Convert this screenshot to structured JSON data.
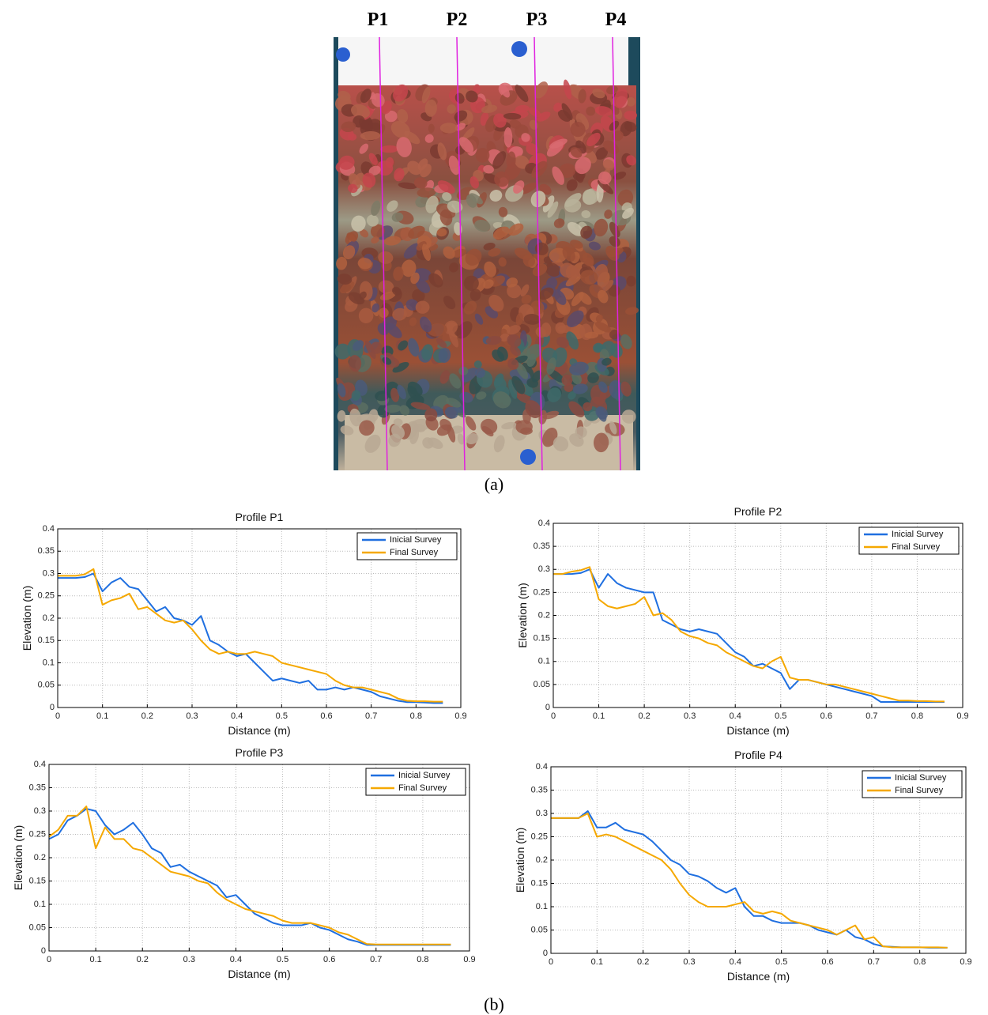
{
  "photo": {
    "profile_labels": [
      "P1",
      "P2",
      "P3",
      "P4"
    ]
  },
  "panel_labels": [
    "(a)",
    "(b)"
  ],
  "chart_data": [
    {
      "type": "line",
      "title": "Profile P1",
      "xlabel": "Distance (m)",
      "ylabel": "Elevation (m)",
      "x": [
        0,
        0.02,
        0.04,
        0.06,
        0.08,
        0.1,
        0.12,
        0.14,
        0.16,
        0.18,
        0.2,
        0.22,
        0.24,
        0.26,
        0.28,
        0.3,
        0.32,
        0.34,
        0.36,
        0.38,
        0.4,
        0.42,
        0.44,
        0.46,
        0.48,
        0.5,
        0.52,
        0.54,
        0.56,
        0.58,
        0.6,
        0.62,
        0.64,
        0.66,
        0.68,
        0.7,
        0.72,
        0.74,
        0.76,
        0.78,
        0.8,
        0.82,
        0.84,
        0.86
      ],
      "series": [
        {
          "name": "Inicial Survey",
          "color": "#1f6fe0",
          "values": [
            0.29,
            0.29,
            0.29,
            0.292,
            0.3,
            0.26,
            0.28,
            0.29,
            0.27,
            0.265,
            0.24,
            0.215,
            0.225,
            0.2,
            0.195,
            0.185,
            0.205,
            0.15,
            0.14,
            0.125,
            0.115,
            0.12,
            0.1,
            0.08,
            0.06,
            0.065,
            0.06,
            0.055,
            0.06,
            0.04,
            0.04,
            0.045,
            0.04,
            0.045,
            0.04,
            0.035,
            0.025,
            0.02,
            0.015,
            0.012,
            0.012,
            0.011,
            0.01,
            0.01
          ]
        },
        {
          "name": "Final Survey",
          "color": "#f5a800",
          "values": [
            0.295,
            0.295,
            0.295,
            0.298,
            0.31,
            0.23,
            0.24,
            0.245,
            0.255,
            0.22,
            0.225,
            0.21,
            0.195,
            0.19,
            0.195,
            0.175,
            0.15,
            0.13,
            0.12,
            0.125,
            0.12,
            0.12,
            0.125,
            0.12,
            0.115,
            0.1,
            0.095,
            0.09,
            0.085,
            0.08,
            0.075,
            0.06,
            0.05,
            0.045,
            0.045,
            0.04,
            0.035,
            0.03,
            0.02,
            0.015,
            0.014,
            0.014,
            0.013,
            0.013
          ]
        }
      ],
      "xlim": [
        0,
        0.9
      ],
      "ylim": [
        0,
        0.4
      ],
      "xticks": [
        0,
        0.1,
        0.2,
        0.3,
        0.4,
        0.5,
        0.6,
        0.7,
        0.8,
        0.9
      ],
      "yticks": [
        0,
        0.05,
        0.1,
        0.15,
        0.2,
        0.25,
        0.3,
        0.35,
        0.4
      ],
      "grid": true,
      "legend": "upper right"
    },
    {
      "type": "line",
      "title": "Profile P2",
      "xlabel": "Distance (m)",
      "ylabel": "Elevation (m)",
      "x": [
        0,
        0.02,
        0.04,
        0.06,
        0.08,
        0.1,
        0.12,
        0.14,
        0.16,
        0.18,
        0.2,
        0.22,
        0.24,
        0.26,
        0.28,
        0.3,
        0.32,
        0.34,
        0.36,
        0.38,
        0.4,
        0.42,
        0.44,
        0.46,
        0.48,
        0.5,
        0.52,
        0.54,
        0.56,
        0.58,
        0.6,
        0.62,
        0.64,
        0.66,
        0.68,
        0.7,
        0.72,
        0.74,
        0.76,
        0.78,
        0.8,
        0.82,
        0.84,
        0.86
      ],
      "series": [
        {
          "name": "Inicial Survey",
          "color": "#1f6fe0",
          "values": [
            0.29,
            0.29,
            0.29,
            0.292,
            0.3,
            0.26,
            0.29,
            0.27,
            0.26,
            0.255,
            0.25,
            0.25,
            0.19,
            0.18,
            0.17,
            0.165,
            0.17,
            0.165,
            0.16,
            0.14,
            0.12,
            0.11,
            0.09,
            0.095,
            0.085,
            0.075,
            0.04,
            0.06,
            0.06,
            0.055,
            0.05,
            0.045,
            0.04,
            0.035,
            0.03,
            0.025,
            0.012,
            0.012,
            0.012,
            0.012,
            0.012,
            0.012,
            0.012,
            0.012
          ]
        },
        {
          "name": "Final Survey",
          "color": "#f5a800",
          "values": [
            0.29,
            0.29,
            0.295,
            0.298,
            0.305,
            0.235,
            0.22,
            0.215,
            0.22,
            0.225,
            0.24,
            0.2,
            0.205,
            0.19,
            0.165,
            0.155,
            0.15,
            0.14,
            0.135,
            0.12,
            0.11,
            0.1,
            0.09,
            0.085,
            0.1,
            0.11,
            0.065,
            0.06,
            0.06,
            0.055,
            0.05,
            0.05,
            0.045,
            0.04,
            0.035,
            0.03,
            0.025,
            0.02,
            0.015,
            0.015,
            0.014,
            0.014,
            0.013,
            0.013
          ]
        }
      ],
      "xlim": [
        0,
        0.9
      ],
      "ylim": [
        0,
        0.4
      ],
      "xticks": [
        0,
        0.1,
        0.2,
        0.3,
        0.4,
        0.5,
        0.6,
        0.7,
        0.8,
        0.9
      ],
      "yticks": [
        0,
        0.05,
        0.1,
        0.15,
        0.2,
        0.25,
        0.3,
        0.35,
        0.4
      ],
      "grid": true,
      "legend": "upper right"
    },
    {
      "type": "line",
      "title": "Profile P3",
      "xlabel": "Distance (m)",
      "ylabel": "Elevation (m)",
      "x": [
        0,
        0.02,
        0.04,
        0.06,
        0.08,
        0.1,
        0.12,
        0.14,
        0.16,
        0.18,
        0.2,
        0.22,
        0.24,
        0.26,
        0.28,
        0.3,
        0.32,
        0.34,
        0.36,
        0.38,
        0.4,
        0.42,
        0.44,
        0.46,
        0.48,
        0.5,
        0.52,
        0.54,
        0.56,
        0.58,
        0.6,
        0.62,
        0.64,
        0.66,
        0.68,
        0.7,
        0.72,
        0.74,
        0.76,
        0.78,
        0.8,
        0.82,
        0.84,
        0.86
      ],
      "series": [
        {
          "name": "Inicial Survey",
          "color": "#1f6fe0",
          "values": [
            0.24,
            0.25,
            0.28,
            0.29,
            0.305,
            0.3,
            0.27,
            0.25,
            0.26,
            0.275,
            0.25,
            0.22,
            0.21,
            0.18,
            0.185,
            0.17,
            0.16,
            0.15,
            0.14,
            0.115,
            0.12,
            0.1,
            0.08,
            0.07,
            0.06,
            0.055,
            0.055,
            0.055,
            0.06,
            0.05,
            0.045,
            0.035,
            0.025,
            0.02,
            0.013,
            0.013,
            0.013,
            0.013,
            0.013,
            0.013,
            0.013,
            0.013,
            0.013,
            0.013
          ]
        },
        {
          "name": "Final Survey",
          "color": "#f5a800",
          "values": [
            0.245,
            0.26,
            0.29,
            0.29,
            0.31,
            0.22,
            0.265,
            0.24,
            0.24,
            0.22,
            0.215,
            0.2,
            0.185,
            0.17,
            0.165,
            0.16,
            0.15,
            0.145,
            0.125,
            0.11,
            0.1,
            0.09,
            0.085,
            0.08,
            0.075,
            0.065,
            0.06,
            0.06,
            0.06,
            0.055,
            0.05,
            0.04,
            0.035,
            0.025,
            0.015,
            0.014,
            0.014,
            0.014,
            0.014,
            0.014,
            0.014,
            0.014,
            0.014,
            0.014
          ]
        }
      ],
      "xlim": [
        0,
        0.9
      ],
      "ylim": [
        0,
        0.4
      ],
      "xticks": [
        0,
        0.1,
        0.2,
        0.3,
        0.4,
        0.5,
        0.6,
        0.7,
        0.8,
        0.9
      ],
      "yticks": [
        0,
        0.05,
        0.1,
        0.15,
        0.2,
        0.25,
        0.3,
        0.35,
        0.4
      ],
      "grid": true,
      "legend": "upper right"
    },
    {
      "type": "line",
      "title": "Profile P4",
      "xlabel": "Distance (m)",
      "ylabel": "Elevation (m)",
      "x": [
        0,
        0.02,
        0.04,
        0.06,
        0.08,
        0.1,
        0.12,
        0.14,
        0.16,
        0.18,
        0.2,
        0.22,
        0.24,
        0.26,
        0.28,
        0.3,
        0.32,
        0.34,
        0.36,
        0.38,
        0.4,
        0.42,
        0.44,
        0.46,
        0.48,
        0.5,
        0.52,
        0.54,
        0.56,
        0.58,
        0.6,
        0.62,
        0.64,
        0.66,
        0.68,
        0.7,
        0.72,
        0.74,
        0.76,
        0.78,
        0.8,
        0.82,
        0.84,
        0.86
      ],
      "series": [
        {
          "name": "Inicial Survey",
          "color": "#1f6fe0",
          "values": [
            0.29,
            0.29,
            0.29,
            0.29,
            0.305,
            0.27,
            0.27,
            0.28,
            0.265,
            0.26,
            0.255,
            0.24,
            0.22,
            0.2,
            0.19,
            0.17,
            0.165,
            0.155,
            0.14,
            0.13,
            0.14,
            0.1,
            0.08,
            0.08,
            0.07,
            0.065,
            0.065,
            0.065,
            0.06,
            0.05,
            0.045,
            0.04,
            0.05,
            0.035,
            0.03,
            0.02,
            0.015,
            0.014,
            0.013,
            0.013,
            0.013,
            0.012,
            0.012,
            0.012
          ]
        },
        {
          "name": "Final Survey",
          "color": "#f5a800",
          "values": [
            0.29,
            0.29,
            0.29,
            0.29,
            0.3,
            0.25,
            0.255,
            0.25,
            0.24,
            0.23,
            0.22,
            0.21,
            0.2,
            0.18,
            0.15,
            0.125,
            0.11,
            0.1,
            0.1,
            0.1,
            0.105,
            0.11,
            0.09,
            0.085,
            0.09,
            0.085,
            0.07,
            0.065,
            0.06,
            0.055,
            0.05,
            0.04,
            0.05,
            0.06,
            0.03,
            0.035,
            0.015,
            0.013,
            0.013,
            0.013,
            0.013,
            0.013,
            0.013,
            0.012
          ]
        }
      ],
      "xlim": [
        0,
        0.9
      ],
      "ylim": [
        0,
        0.4
      ],
      "xticks": [
        0,
        0.1,
        0.2,
        0.3,
        0.4,
        0.5,
        0.6,
        0.7,
        0.8,
        0.9
      ],
      "yticks": [
        0,
        0.05,
        0.1,
        0.15,
        0.2,
        0.25,
        0.3,
        0.35,
        0.4
      ],
      "grid": true,
      "legend": "upper right"
    }
  ]
}
